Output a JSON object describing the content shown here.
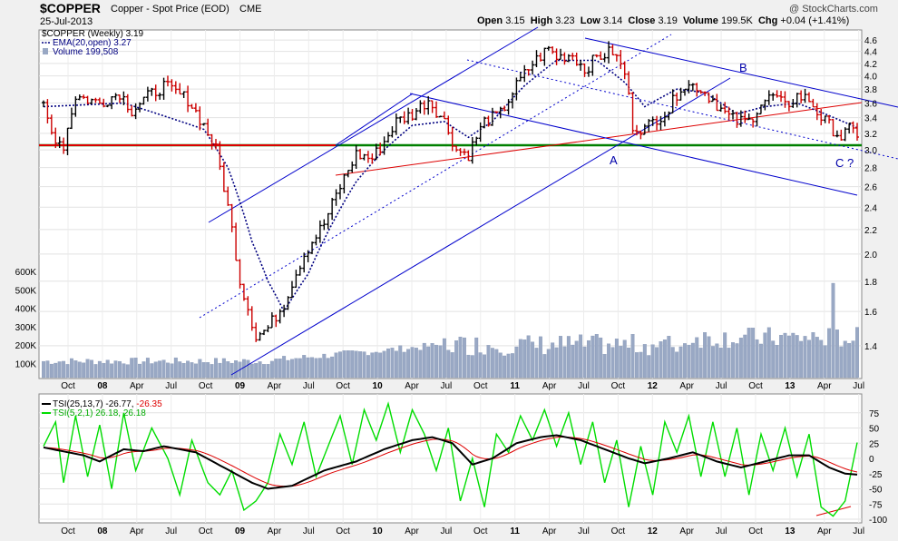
{
  "header": {
    "symbol": "$COPPER",
    "description": "Copper - Spot Price (EOD)",
    "exchange": "CME",
    "date": "25-Jul-2013",
    "watermark": "@ StockCharts.com",
    "quote": [
      {
        "label": "Open",
        "value": "3.15"
      },
      {
        "label": "High",
        "value": "3.23"
      },
      {
        "label": "Low",
        "value": "3.14"
      },
      {
        "label": "Close",
        "value": "3.19"
      },
      {
        "label": "Volume",
        "value": "199.5K"
      },
      {
        "label": "Chg",
        "value": "+0.04 (+1.41%)"
      }
    ]
  },
  "legend_main": {
    "price": "$COPPER (Weekly) 3.19",
    "ema": "EMA(20,open) 3.27",
    "volume": "Volume 199,508"
  },
  "legend_tsi": {
    "tsi_name": "TSI(25,13,7)",
    "tsi_val1": "-26.77,",
    "tsi_val2": "-26.35",
    "tsi2": "TSI(5,2,1) 26.18, 26.18"
  },
  "annotations": [
    "A",
    "B",
    "C ?"
  ],
  "colors": {
    "up_bar": "#000000",
    "down_bar": "#cc0000",
    "ema": "#000080",
    "volume": "#99a8c4",
    "trendline_blue": "#0000cc",
    "support_green": "#008000",
    "support_red": "#dd0000",
    "tsi_green": "#00dd00"
  },
  "chart_data": [
    {
      "type": "line",
      "panel": "price",
      "scale": "log",
      "ylim": [
        1.25,
        4.7
      ],
      "yticks": [
        "4.6",
        "4.4",
        "4.2",
        "4.0",
        "3.8",
        "3.6",
        "3.4",
        "3.2",
        "3.0",
        "2.8",
        "2.6",
        "2.4",
        "2.2",
        "2.0",
        "1.8",
        "1.6",
        "1.4"
      ],
      "xticks": [
        "Oct",
        "08",
        "Apr",
        "Jul",
        "Oct",
        "09",
        "Apr",
        "Jul",
        "Oct",
        "10",
        "Apr",
        "Jul",
        "Oct",
        "11",
        "Apr",
        "Jul",
        "Oct",
        "12",
        "Apr",
        "Jul",
        "Oct",
        "13",
        "Apr",
        "Jul"
      ],
      "series": [
        {
          "name": "$COPPER (Weekly)",
          "anchors": [
            [
              0,
              3.55
            ],
            [
              2,
              3.2
            ],
            [
              5,
              3.05
            ],
            [
              8,
              3.7
            ],
            [
              14,
              3.6
            ],
            [
              19,
              3.75
            ],
            [
              22,
              3.5
            ],
            [
              25,
              3.65
            ],
            [
              30,
              3.85
            ],
            [
              36,
              3.65
            ],
            [
              40,
              3.3
            ],
            [
              43,
              3.0
            ],
            [
              46,
              2.4
            ],
            [
              49,
              1.8
            ],
            [
              53,
              1.45
            ],
            [
              56,
              1.5
            ],
            [
              60,
              1.65
            ],
            [
              65,
              2.0
            ],
            [
              70,
              2.25
            ],
            [
              74,
              2.6
            ],
            [
              78,
              2.95
            ],
            [
              82,
              2.9
            ],
            [
              85,
              3.1
            ],
            [
              88,
              3.35
            ],
            [
              92,
              3.45
            ],
            [
              96,
              3.65
            ],
            [
              100,
              3.35
            ],
            [
              103,
              3.0
            ],
            [
              106,
              2.95
            ],
            [
              110,
              3.35
            ],
            [
              114,
              3.45
            ],
            [
              118,
              3.85
            ],
            [
              122,
              4.2
            ],
            [
              126,
              4.45
            ],
            [
              128,
              4.3
            ],
            [
              132,
              4.35
            ],
            [
              135,
              4.1
            ],
            [
              138,
              4.3
            ],
            [
              142,
              4.4
            ],
            [
              145,
              4.05
            ],
            [
              147,
              3.3
            ],
            [
              150,
              3.25
            ],
            [
              153,
              3.4
            ],
            [
              156,
              3.5
            ],
            [
              159,
              3.85
            ],
            [
              163,
              3.85
            ],
            [
              167,
              3.65
            ],
            [
              170,
              3.45
            ],
            [
              173,
              3.35
            ],
            [
              176,
              3.35
            ],
            [
              179,
              3.6
            ],
            [
              182,
              3.7
            ],
            [
              185,
              3.55
            ],
            [
              188,
              3.7
            ],
            [
              191,
              3.65
            ],
            [
              194,
              3.4
            ],
            [
              197,
              3.25
            ],
            [
              199,
              3.15
            ],
            [
              201,
              3.25
            ],
            [
              203,
              3.2
            ]
          ]
        },
        {
          "name": "EMA(20,open)",
          "anchors": [
            [
              0,
              3.55
            ],
            [
              20,
              3.6
            ],
            [
              40,
              3.25
            ],
            [
              46,
              2.8
            ],
            [
              52,
              2.1
            ],
            [
              56,
              1.8
            ],
            [
              60,
              1.6
            ],
            [
              66,
              1.85
            ],
            [
              72,
              2.25
            ],
            [
              78,
              2.65
            ],
            [
              85,
              3.0
            ],
            [
              92,
              3.3
            ],
            [
              100,
              3.35
            ],
            [
              106,
              3.15
            ],
            [
              112,
              3.35
            ],
            [
              120,
              3.85
            ],
            [
              128,
              4.25
            ],
            [
              138,
              4.25
            ],
            [
              145,
              3.9
            ],
            [
              150,
              3.55
            ],
            [
              158,
              3.8
            ],
            [
              165,
              3.75
            ],
            [
              173,
              3.45
            ],
            [
              180,
              3.55
            ],
            [
              188,
              3.6
            ],
            [
              195,
              3.45
            ],
            [
              203,
              3.27
            ]
          ]
        }
      ]
    },
    {
      "type": "bar",
      "panel": "volume",
      "series": [
        {
          "name": "Volume",
          "yticks": [
            "600K",
            "500K",
            "400K",
            "300K",
            "200K",
            "100K"
          ]
        }
      ]
    },
    {
      "type": "line",
      "panel": "tsi",
      "ylim": [
        -100,
        100
      ],
      "yticks": [
        "75",
        "50",
        "25",
        "0",
        "-25",
        "-50",
        "-75",
        "-100"
      ],
      "series": [
        {
          "name": "TSI(25,13,7)",
          "anchors": [
            [
              0,
              18
            ],
            [
              10,
              5
            ],
            [
              14,
              -5
            ],
            [
              20,
              15
            ],
            [
              25,
              12
            ],
            [
              30,
              20
            ],
            [
              38,
              10
            ],
            [
              45,
              -15
            ],
            [
              52,
              -40
            ],
            [
              56,
              -50
            ],
            [
              62,
              -45
            ],
            [
              70,
              -20
            ],
            [
              78,
              -5
            ],
            [
              85,
              15
            ],
            [
              92,
              30
            ],
            [
              97,
              35
            ],
            [
              102,
              25
            ],
            [
              107,
              -10
            ],
            [
              112,
              0
            ],
            [
              118,
              25
            ],
            [
              124,
              35
            ],
            [
              128,
              38
            ],
            [
              134,
              30
            ],
            [
              140,
              15
            ],
            [
              146,
              0
            ],
            [
              150,
              -8
            ],
            [
              156,
              0
            ],
            [
              162,
              10
            ],
            [
              168,
              -5
            ],
            [
              174,
              -15
            ],
            [
              180,
              -5
            ],
            [
              186,
              5
            ],
            [
              191,
              5
            ],
            [
              196,
              -15
            ],
            [
              200,
              -25
            ],
            [
              203,
              -26.77
            ]
          ]
        },
        {
          "name": "TSI(5,2,1)",
          "anchors": [
            [
              0,
              20
            ],
            [
              3,
              60
            ],
            [
              5,
              -40
            ],
            [
              8,
              70
            ],
            [
              11,
              -30
            ],
            [
              14,
              55
            ],
            [
              17,
              -50
            ],
            [
              20,
              75
            ],
            [
              23,
              -20
            ],
            [
              27,
              50
            ],
            [
              31,
              0
            ],
            [
              34,
              -60
            ],
            [
              37,
              30
            ],
            [
              41,
              -40
            ],
            [
              44,
              -60
            ],
            [
              47,
              -20
            ],
            [
              50,
              -85
            ],
            [
              53,
              -70
            ],
            [
              56,
              -40
            ],
            [
              59,
              40
            ],
            [
              62,
              -10
            ],
            [
              65,
              60
            ],
            [
              68,
              -30
            ],
            [
              71,
              20
            ],
            [
              74,
              70
            ],
            [
              77,
              -10
            ],
            [
              80,
              80
            ],
            [
              83,
              30
            ],
            [
              86,
              90
            ],
            [
              89,
              10
            ],
            [
              92,
              80
            ],
            [
              95,
              40
            ],
            [
              98,
              -20
            ],
            [
              101,
              50
            ],
            [
              104,
              -70
            ],
            [
              107,
              0
            ],
            [
              110,
              -80
            ],
            [
              113,
              40
            ],
            [
              116,
              10
            ],
            [
              119,
              70
            ],
            [
              122,
              30
            ],
            [
              125,
              80
            ],
            [
              128,
              20
            ],
            [
              131,
              75
            ],
            [
              134,
              -10
            ],
            [
              137,
              60
            ],
            [
              140,
              -40
            ],
            [
              143,
              30
            ],
            [
              146,
              -80
            ],
            [
              149,
              20
            ],
            [
              152,
              -60
            ],
            [
              155,
              60
            ],
            [
              158,
              10
            ],
            [
              161,
              70
            ],
            [
              164,
              -30
            ],
            [
              167,
              60
            ],
            [
              170,
              -30
            ],
            [
              173,
              50
            ],
            [
              176,
              -60
            ],
            [
              179,
              40
            ],
            [
              182,
              -20
            ],
            [
              185,
              50
            ],
            [
              188,
              -30
            ],
            [
              191,
              40
            ],
            [
              194,
              -80
            ],
            [
              197,
              -95
            ],
            [
              200,
              -70
            ],
            [
              203,
              26.18
            ]
          ]
        }
      ]
    }
  ]
}
